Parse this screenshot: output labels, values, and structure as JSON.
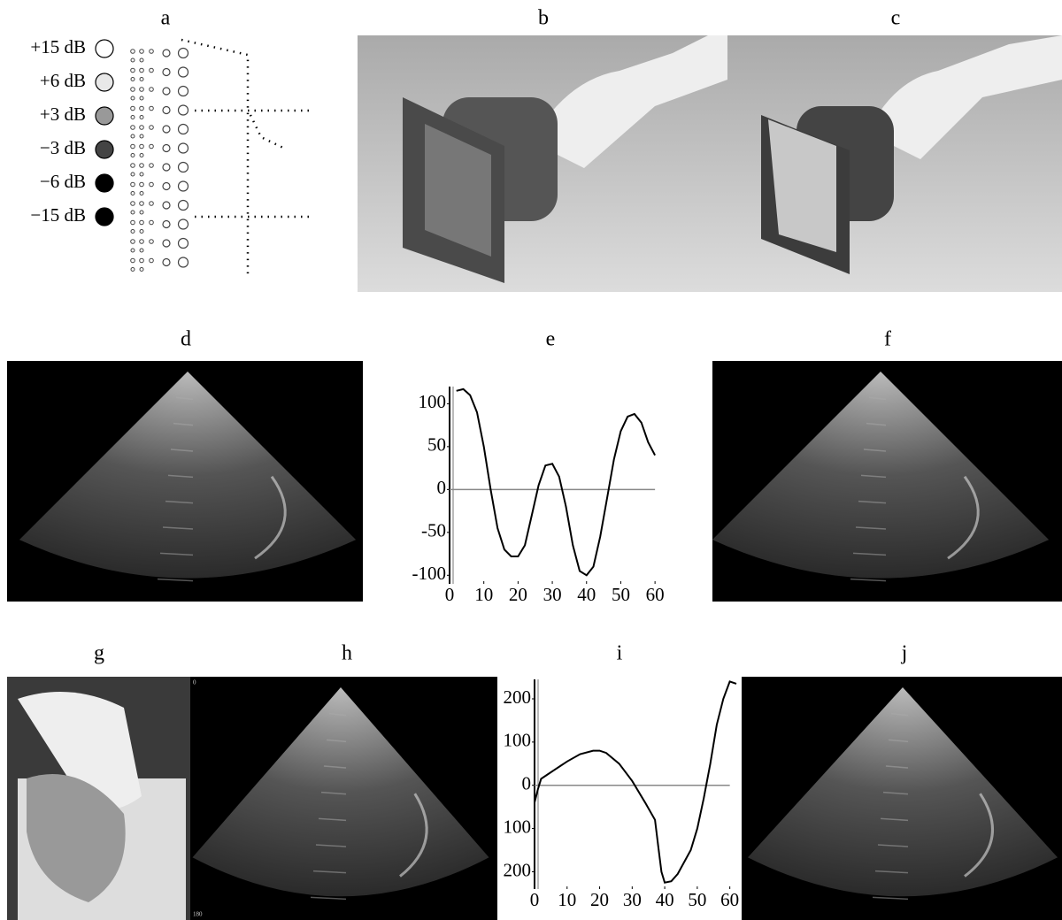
{
  "panel_labels": [
    "a",
    "b",
    "c",
    "d",
    "e",
    "f",
    "g",
    "h",
    "i",
    "j"
  ],
  "legend": [
    {
      "label": "+15 dB",
      "color": "#ffffff"
    },
    {
      "label": "+6 dB",
      "color": "#e8e8e8"
    },
    {
      "label": "+3 dB",
      "color": "#999999"
    },
    {
      "label": "−3 dB",
      "color": "#444444"
    },
    {
      "label": "−6 dB",
      "color": "#000000"
    },
    {
      "label": "−15 dB",
      "color": "#000000"
    }
  ],
  "h_scale": [
    "0",
    "180"
  ],
  "chart_data": [
    {
      "type": "line",
      "color": "#000000",
      "x": [
        2,
        4,
        6,
        8,
        10,
        12,
        14,
        16,
        18,
        20,
        22,
        24,
        26,
        28,
        30,
        32,
        34,
        36,
        38,
        40,
        42,
        44,
        46,
        48,
        50,
        52,
        54,
        56,
        58,
        60
      ],
      "values": [
        115,
        117,
        110,
        90,
        50,
        0,
        -45,
        -70,
        -78,
        -78,
        -65,
        -30,
        5,
        28,
        30,
        15,
        -20,
        -65,
        -95,
        -100,
        -90,
        -55,
        -10,
        35,
        68,
        85,
        88,
        78,
        55,
        40
      ],
      "xlim": [
        0,
        61
      ],
      "ylim": [
        -110,
        120
      ],
      "xticks": [
        0,
        10,
        20,
        30,
        40,
        50,
        60
      ],
      "yticks": [
        100,
        50,
        0,
        -50,
        -100
      ]
    },
    {
      "type": "line",
      "color": "#000000",
      "x": [
        0,
        1,
        2,
        4,
        6,
        10,
        14,
        18,
        20,
        22,
        26,
        30,
        34,
        37,
        38,
        39,
        40,
        42,
        44,
        48,
        50,
        52,
        54,
        56,
        58,
        60,
        62
      ],
      "values": [
        -40,
        -10,
        15,
        25,
        35,
        55,
        72,
        80,
        80,
        75,
        50,
        10,
        -40,
        -80,
        -140,
        -200,
        -225,
        -222,
        -205,
        -150,
        -100,
        -30,
        50,
        140,
        200,
        240,
        235
      ],
      "xlim": [
        0,
        62
      ],
      "ylim": [
        -240,
        245
      ],
      "xticks": [
        0,
        10,
        20,
        30,
        40,
        50,
        60
      ],
      "yticks": [
        200,
        100,
        0,
        {
          "value": -100,
          "label": "100"
        },
        {
          "value": -200,
          "label": "200"
        }
      ]
    }
  ]
}
